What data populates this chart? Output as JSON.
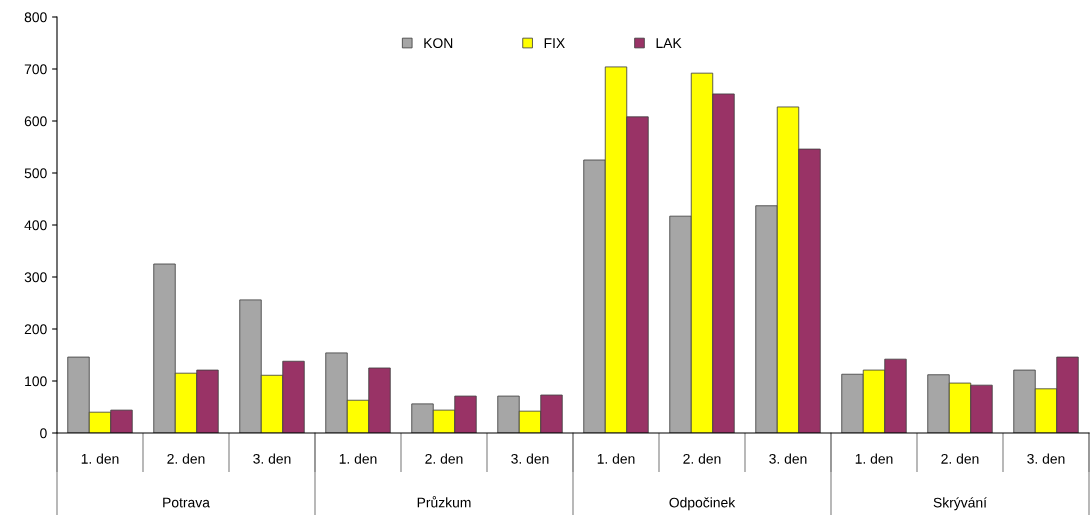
{
  "chart_data": {
    "type": "bar",
    "categories": [
      "1. den",
      "2. den",
      "3. den",
      "1. den",
      "2. den",
      "3. den",
      "1. den",
      "2. den",
      "3. den",
      "1. den",
      "2. den",
      "3. den"
    ],
    "series": [
      {
        "name": "KON",
        "color": "#a6a6a6",
        "values": [
          146,
          325,
          256,
          154,
          56,
          71,
          525,
          417,
          437,
          113,
          112,
          121
        ]
      },
      {
        "name": "FIX",
        "color": "#ffff00",
        "values": [
          40,
          115,
          111,
          63,
          44,
          42,
          704,
          692,
          627,
          121,
          96,
          85
        ]
      },
      {
        "name": "LAK",
        "color": "#993366",
        "values": [
          44,
          121,
          138,
          125,
          71,
          73,
          608,
          652,
          546,
          142,
          92,
          146
        ]
      }
    ],
    "annotations": [
      "Potrava",
      "Průzkum",
      "Odpočinek",
      "Skrývání"
    ],
    "ylim": [
      0,
      800
    ],
    "yticks": [
      0,
      100,
      200,
      300,
      400,
      500,
      600,
      700,
      800
    ],
    "grid": false,
    "legend": "top"
  }
}
